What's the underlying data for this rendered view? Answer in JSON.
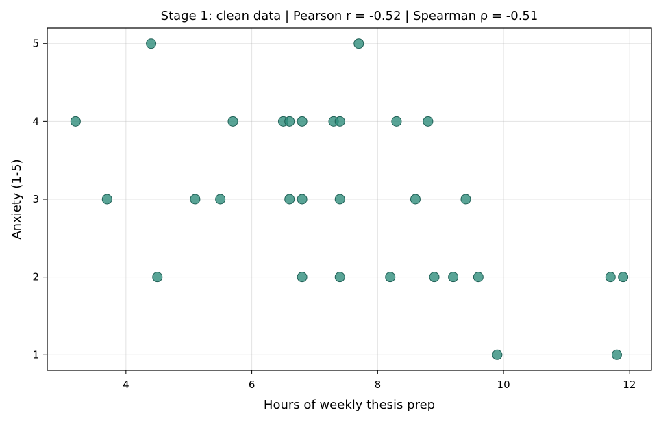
{
  "chart_data": {
    "type": "scatter",
    "title": "Stage 1: clean data  |  Pearson r = -0.52  |  Spearman ρ = -0.51",
    "xlabel": "Hours of weekly thesis prep",
    "ylabel": "Anxiety (1-5)",
    "xlim": [
      2.75,
      12.35
    ],
    "ylim": [
      0.8,
      5.2
    ],
    "xticks": [
      4,
      6,
      8,
      10,
      12
    ],
    "yticks": [
      1,
      2,
      3,
      4,
      5
    ],
    "grid": true,
    "marker_color": "#2a8a78",
    "marker_edge_color": "#1f5f55",
    "points": [
      {
        "x": 3.2,
        "y": 4
      },
      {
        "x": 3.7,
        "y": 3
      },
      {
        "x": 4.4,
        "y": 5
      },
      {
        "x": 4.5,
        "y": 2
      },
      {
        "x": 5.1,
        "y": 3
      },
      {
        "x": 5.5,
        "y": 3
      },
      {
        "x": 5.7,
        "y": 4
      },
      {
        "x": 6.5,
        "y": 4
      },
      {
        "x": 6.6,
        "y": 4
      },
      {
        "x": 6.6,
        "y": 3
      },
      {
        "x": 6.8,
        "y": 4
      },
      {
        "x": 6.8,
        "y": 3
      },
      {
        "x": 6.8,
        "y": 2
      },
      {
        "x": 7.3,
        "y": 4
      },
      {
        "x": 7.4,
        "y": 4
      },
      {
        "x": 7.4,
        "y": 3
      },
      {
        "x": 7.4,
        "y": 2
      },
      {
        "x": 7.7,
        "y": 5
      },
      {
        "x": 8.2,
        "y": 2
      },
      {
        "x": 8.3,
        "y": 4
      },
      {
        "x": 8.6,
        "y": 3
      },
      {
        "x": 8.8,
        "y": 4
      },
      {
        "x": 8.9,
        "y": 2
      },
      {
        "x": 9.2,
        "y": 2
      },
      {
        "x": 9.4,
        "y": 3
      },
      {
        "x": 9.6,
        "y": 2
      },
      {
        "x": 9.9,
        "y": 1
      },
      {
        "x": 11.7,
        "y": 2
      },
      {
        "x": 11.8,
        "y": 1
      },
      {
        "x": 11.9,
        "y": 2
      }
    ]
  }
}
